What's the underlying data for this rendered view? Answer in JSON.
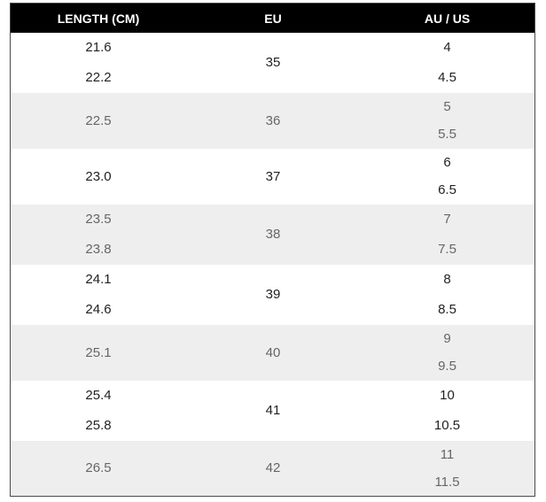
{
  "table": {
    "headers": {
      "length": "LENGTH (CM)",
      "eu": "EU",
      "au_us": "AU / US"
    },
    "groups": [
      {
        "lengths": [
          "21.6",
          "22.2"
        ],
        "eu": "35",
        "au_us": [
          "4",
          "4.5"
        ]
      },
      {
        "lengths": [
          "22.5"
        ],
        "eu": "36",
        "au_us": [
          "5",
          "5.5"
        ]
      },
      {
        "lengths": [
          "23.0"
        ],
        "eu": "37",
        "au_us": [
          "6",
          "6.5"
        ]
      },
      {
        "lengths": [
          "23.5",
          "23.8"
        ],
        "eu": "38",
        "au_us": [
          "7",
          "7.5"
        ]
      },
      {
        "lengths": [
          "24.1",
          "24.6"
        ],
        "eu": "39",
        "au_us": [
          "8",
          "8.5"
        ]
      },
      {
        "lengths": [
          "25.1"
        ],
        "eu": "40",
        "au_us": [
          "9",
          "9.5"
        ]
      },
      {
        "lengths": [
          "25.4",
          "25.8"
        ],
        "eu": "41",
        "au_us": [
          "10",
          "10.5"
        ]
      },
      {
        "lengths": [
          "26.5"
        ],
        "eu": "42",
        "au_us": [
          "11",
          "11.5"
        ]
      }
    ]
  },
  "colors": {
    "header_bg": "#000000",
    "header_text": "#ffffff",
    "shaded_row_bg": "#eeeeee",
    "border": "#4a4a4a"
  }
}
